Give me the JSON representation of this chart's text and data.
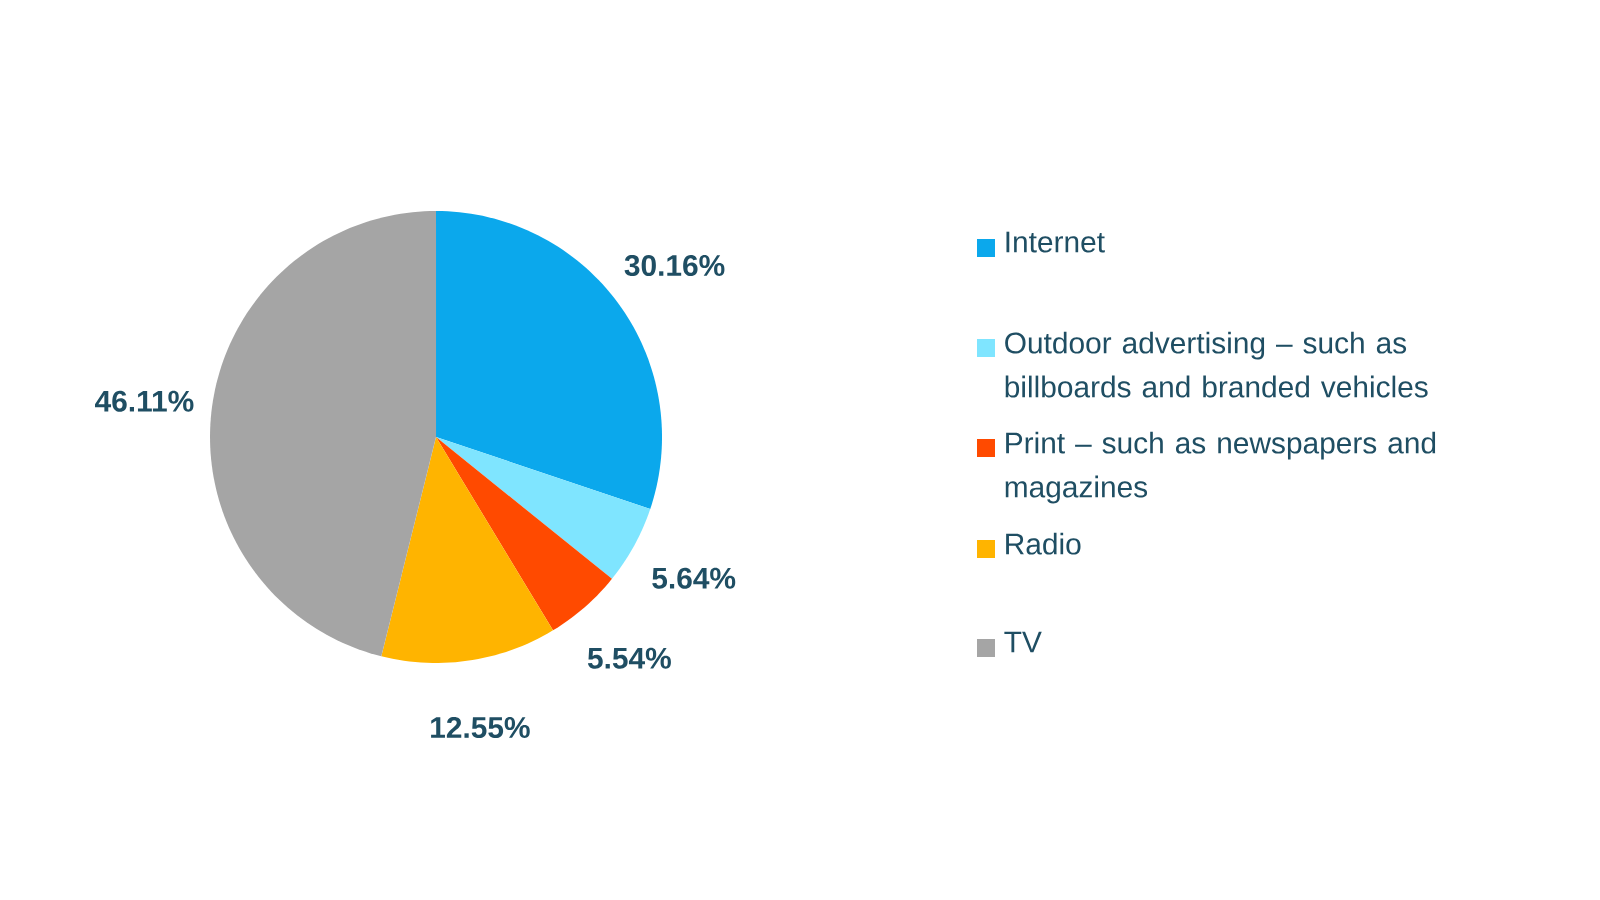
{
  "chart_data": {
    "type": "pie",
    "categories": [
      "Internet",
      "Outdoor advertising – such as billboards and branded vehicles",
      "Print – such as newspapers and magazines",
      "Radio",
      "TV"
    ],
    "values": [
      30.16,
      5.64,
      5.54,
      12.55,
      46.11
    ],
    "colors": [
      "#0ba8ec",
      "#7fe5ff",
      "#ff4a00",
      "#ffb400",
      "#a5a5a5"
    ],
    "value_labels": [
      "30.16%",
      "5.64%",
      "5.54%",
      "12.55%",
      "46.11%"
    ],
    "legend": "right"
  }
}
